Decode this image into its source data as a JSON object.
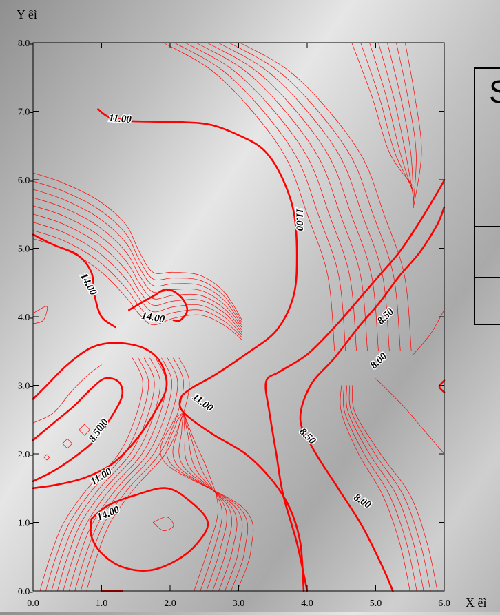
{
  "panel": {
    "title_fragment": "S"
  },
  "chart_data": {
    "type": "contour",
    "title": "",
    "xlabel": "X êì",
    "ylabel": "Y êì",
    "xlim": [
      0,
      6
    ],
    "ylim": [
      0,
      8
    ],
    "x_ticks": [
      "0.0",
      "1.0",
      "2.0",
      "3.0",
      "4.0",
      "5.0",
      "6.0"
    ],
    "y_ticks": [
      "0.0-",
      "1.0-",
      "2.0-",
      "3.0-",
      "4.0-",
      "5.0-",
      "6.0-",
      "7.0-",
      "8.0-"
    ],
    "line_color": "#ff0000",
    "label_color": "#000000",
    "major_contours": [
      {
        "level": "11.00",
        "points": [
          [
            0.95,
            7.03
          ],
          [
            1.1,
            6.92
          ],
          [
            1.4,
            6.86
          ],
          [
            1.7,
            6.85
          ],
          [
            2.2,
            6.84
          ],
          [
            2.6,
            6.8
          ],
          [
            3.0,
            6.65
          ],
          [
            3.35,
            6.45
          ],
          [
            3.6,
            6.1
          ],
          [
            3.8,
            5.55
          ],
          [
            3.85,
            4.9
          ],
          [
            3.8,
            4.3
          ],
          [
            3.55,
            3.8
          ],
          [
            3.1,
            3.45
          ],
          [
            2.65,
            3.15
          ],
          [
            2.3,
            2.95
          ],
          [
            2.15,
            2.8
          ],
          [
            2.2,
            2.6
          ],
          [
            2.6,
            2.3
          ],
          [
            3.1,
            2.0
          ],
          [
            3.5,
            1.6
          ],
          [
            3.75,
            1.2
          ],
          [
            3.9,
            0.7
          ],
          [
            3.95,
            0.0
          ]
        ]
      },
      {
        "level": "11.00",
        "points": [
          [
            0.0,
            1.5
          ],
          [
            0.35,
            1.55
          ],
          [
            0.75,
            1.65
          ],
          [
            1.15,
            1.85
          ],
          [
            1.5,
            2.2
          ],
          [
            1.8,
            2.65
          ],
          [
            1.95,
            3.0
          ],
          [
            1.85,
            3.35
          ],
          [
            1.6,
            3.55
          ],
          [
            1.2,
            3.62
          ],
          [
            0.85,
            3.55
          ],
          [
            0.5,
            3.3
          ],
          [
            0.2,
            3.0
          ],
          [
            0.0,
            2.8
          ]
        ]
      },
      {
        "level": "14.00",
        "points": [
          [
            0.0,
            5.2
          ],
          [
            0.3,
            5.05
          ],
          [
            0.65,
            4.9
          ],
          [
            0.85,
            4.65
          ],
          [
            0.9,
            4.3
          ],
          [
            1.0,
            4.0
          ],
          [
            1.2,
            3.85
          ]
        ]
      },
      {
        "level": "14.00",
        "points": [
          [
            1.4,
            4.1
          ],
          [
            1.75,
            4.3
          ],
          [
            1.95,
            4.4
          ],
          [
            2.15,
            4.3
          ],
          [
            2.25,
            4.1
          ],
          [
            2.15,
            3.95
          ],
          [
            2.05,
            3.95
          ]
        ]
      },
      {
        "level": "14.00",
        "points": [
          [
            1.0,
            0.0
          ],
          [
            1.3,
            0.0
          ]
        ]
      },
      {
        "level": "14.00",
        "points": [
          [
            0.85,
            1.05
          ],
          [
            1.1,
            1.25
          ],
          [
            1.5,
            1.4
          ],
          [
            1.95,
            1.5
          ],
          [
            2.3,
            1.3
          ],
          [
            2.55,
            1.0
          ],
          [
            2.4,
            0.7
          ],
          [
            2.1,
            0.45
          ],
          [
            1.7,
            0.3
          ],
          [
            1.3,
            0.35
          ],
          [
            1.0,
            0.55
          ],
          [
            0.85,
            0.8
          ],
          [
            0.85,
            1.05
          ]
        ]
      },
      {
        "level": "8.50",
        "points": [
          [
            4.0,
            0.0
          ],
          [
            3.85,
            0.7
          ],
          [
            3.65,
            1.4
          ],
          [
            3.55,
            2.0
          ],
          [
            3.45,
            2.6
          ],
          [
            3.4,
            3.05
          ],
          [
            3.6,
            3.2
          ],
          [
            4.0,
            3.45
          ],
          [
            4.4,
            3.85
          ],
          [
            4.75,
            4.25
          ],
          [
            5.05,
            4.6
          ],
          [
            5.35,
            4.95
          ],
          [
            5.65,
            5.4
          ],
          [
            5.95,
            5.9
          ],
          [
            6.0,
            6.0
          ]
        ]
      },
      {
        "level": "8.00",
        "points": [
          [
            5.25,
            0.0
          ],
          [
            5.1,
            0.35
          ],
          [
            4.8,
            0.95
          ],
          [
            4.45,
            1.5
          ],
          [
            4.1,
            2.05
          ],
          [
            3.9,
            2.5
          ],
          [
            4.05,
            3.0
          ],
          [
            4.4,
            3.4
          ],
          [
            4.75,
            3.85
          ],
          [
            5.05,
            4.2
          ],
          [
            5.35,
            4.6
          ],
          [
            5.65,
            4.95
          ],
          [
            5.9,
            5.35
          ],
          [
            6.0,
            5.6
          ]
        ]
      },
      {
        "level": "8.00",
        "points": [
          [
            0.0,
            2.2
          ],
          [
            0.3,
            2.45
          ],
          [
            0.6,
            2.7
          ],
          [
            0.85,
            2.95
          ],
          [
            1.05,
            3.1
          ],
          [
            1.25,
            3.05
          ],
          [
            1.3,
            2.85
          ],
          [
            1.15,
            2.55
          ],
          [
            0.9,
            2.2
          ],
          [
            0.6,
            1.95
          ],
          [
            0.3,
            1.75
          ],
          [
            0.0,
            1.6
          ]
        ]
      },
      {
        "level": "8.00",
        "points": [
          [
            6.0,
            2.9
          ],
          [
            5.93,
            2.98
          ],
          [
            6.0,
            3.07
          ]
        ]
      }
    ],
    "contour_labels": [
      {
        "text": "11.00",
        "x": 1.27,
        "y": 6.88,
        "rotate": 4
      },
      {
        "text": "11.00",
        "x": 3.88,
        "y": 5.42,
        "rotate": 90
      },
      {
        "text": "14.00",
        "x": 0.8,
        "y": 4.47,
        "rotate": 62
      },
      {
        "text": "14.00",
        "x": 1.75,
        "y": 3.98,
        "rotate": 10
      },
      {
        "text": "11.00",
        "x": 2.47,
        "y": 2.74,
        "rotate": 36
      },
      {
        "text": "8.50",
        "x": 4.0,
        "y": 2.25,
        "rotate": 44
      },
      {
        "text": "8.00",
        "x": 1.0,
        "y": 2.38,
        "rotate": -56
      },
      {
        "text": "8.50",
        "x": 0.93,
        "y": 2.29,
        "rotate": -56
      },
      {
        "text": "11.00",
        "x": 1.0,
        "y": 1.66,
        "rotate": -33
      },
      {
        "text": "14.00",
        "x": 1.1,
        "y": 1.12,
        "rotate": -22
      },
      {
        "text": "8.50",
        "x": 5.15,
        "y": 4.0,
        "rotate": -44
      },
      {
        "text": "8.00",
        "x": 5.05,
        "y": 3.35,
        "rotate": -44
      },
      {
        "text": "8.00",
        "x": 4.8,
        "y": 1.3,
        "rotate": 32
      }
    ]
  }
}
